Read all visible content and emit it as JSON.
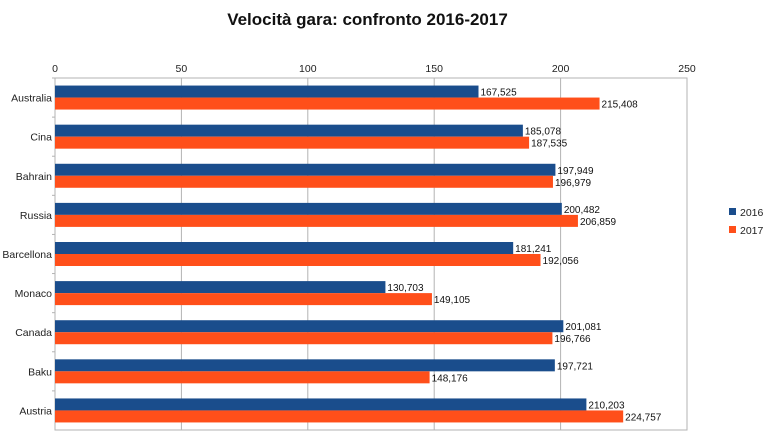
{
  "chart_data": {
    "type": "bar",
    "orientation": "horizontal",
    "title": "Velocità gara: confronto 2016-2017",
    "xlabel": "",
    "ylabel": "",
    "xlim": [
      0,
      250
    ],
    "x_ticks": [
      "0",
      "50",
      "100",
      "150",
      "200",
      "250"
    ],
    "x_axis_position": "top",
    "grid": true,
    "legend_position": "right",
    "categories": [
      "Australia",
      "Cina",
      "Bahrain",
      "Russia",
      "Barcellona",
      "Monaco",
      "Canada",
      "Baku",
      "Austria"
    ],
    "series": [
      {
        "name": "2016",
        "color": "#1a4d8c",
        "values": [
          167.525,
          185.078,
          197.949,
          200.482,
          181.241,
          130.703,
          201.081,
          197.721,
          210.203
        ],
        "labels": [
          "167,525",
          "185,078",
          "197,949",
          "200,482",
          "181,241",
          "130,703",
          "201,081",
          "197,721",
          "210,203"
        ]
      },
      {
        "name": "2017",
        "color": "#ff4f1a",
        "values": [
          215.408,
          187.535,
          196.979,
          206.859,
          192.056,
          149.105,
          196.766,
          148.176,
          224.757
        ],
        "labels": [
          "215,408",
          "187,535",
          "196,979",
          "206,859",
          "192,056",
          "149,105",
          "196,766",
          "148,176",
          "224,757"
        ]
      }
    ]
  }
}
